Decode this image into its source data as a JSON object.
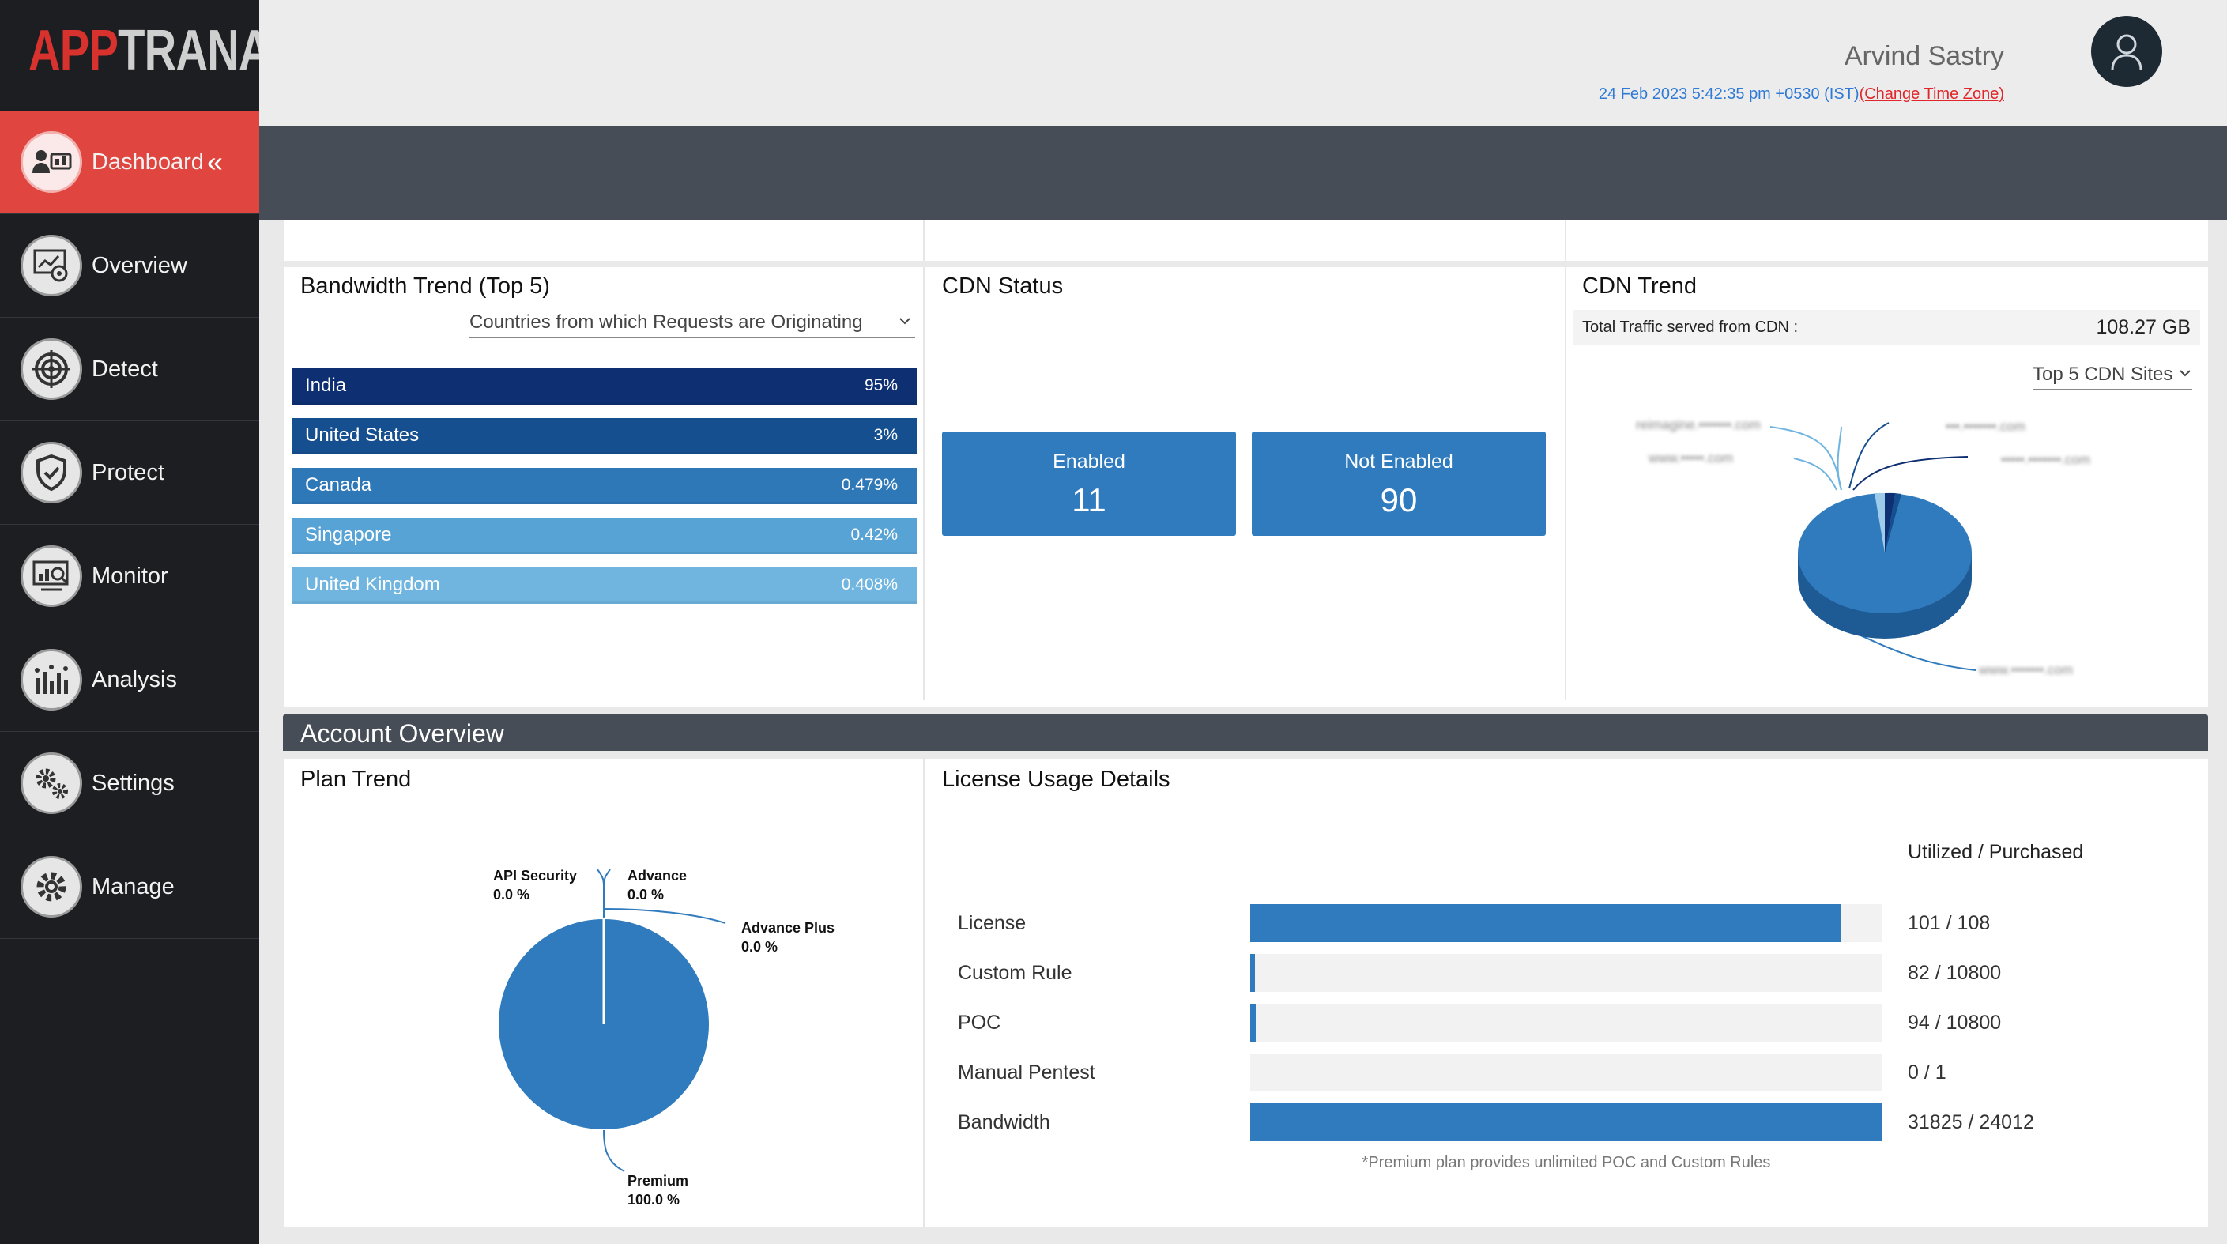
{
  "app": {
    "logo_app": "APP",
    "logo_trana": "TRANA"
  },
  "sidebar": {
    "items": [
      {
        "label": "Dashboard",
        "icon": "dashboard-icon",
        "active": true
      },
      {
        "label": "Overview",
        "icon": "overview-icon"
      },
      {
        "label": "Detect",
        "icon": "target-icon"
      },
      {
        "label": "Protect",
        "icon": "shield-icon"
      },
      {
        "label": "Monitor",
        "icon": "monitor-icon"
      },
      {
        "label": "Analysis",
        "icon": "bar-chart-icon"
      },
      {
        "label": "Settings",
        "icon": "gears-icon"
      },
      {
        "label": "Manage",
        "icon": "gear-icon"
      }
    ],
    "collapse_glyph": "«"
  },
  "header": {
    "user_name": "Arvind Sastry",
    "datetime": "24 Feb 2023 5:42:35 pm +0530 (IST)",
    "change_tz": "(Change Time Zone)"
  },
  "bandwidth": {
    "title": "Bandwidth Trend (Top 5)",
    "dropdown": "Countries from which Requests are Originating",
    "rows": [
      {
        "name": "India",
        "value": "95%",
        "color": "#0e2f72"
      },
      {
        "name": "United States",
        "value": "3%",
        "color": "#164f8f"
      },
      {
        "name": "Canada",
        "value": "0.479%",
        "color": "#2f78b8"
      },
      {
        "name": "Singapore",
        "value": "0.42%",
        "color": "#58a3d6"
      },
      {
        "name": "United Kingdom",
        "value": "0.408%",
        "color": "#6fb5df"
      }
    ]
  },
  "cdn_status": {
    "title": "CDN Status",
    "enabled_label": "Enabled",
    "enabled_value": "11",
    "not_enabled_label": "Not Enabled",
    "not_enabled_value": "90"
  },
  "cdn_trend": {
    "title": "CDN Trend",
    "total_label": "Total Traffic served from CDN :",
    "total_value": "108.27 GB",
    "dropdown": "Top 5 CDN Sites",
    "blurred_sites": [
      "reimagine.•••••••.com",
      "www.•••••.com",
      "•••.•••••••.com",
      "•••••.•••••••.com",
      "www.•••••••.com"
    ]
  },
  "account": {
    "title": "Account Overview",
    "plan_trend": {
      "title": "Plan Trend",
      "labels": [
        {
          "name": "API Security",
          "value": "0.0 %"
        },
        {
          "name": "Advance",
          "value": "0.0 %"
        },
        {
          "name": "Advance Plus",
          "value": "0.0 %"
        },
        {
          "name": "Premium",
          "value": "100.0 %"
        }
      ]
    },
    "license": {
      "title": "License Usage Details",
      "column_header": "Utilized / Purchased",
      "rows": [
        {
          "label": "License",
          "value": "101 / 108",
          "fraction": 0.935
        },
        {
          "label": "Custom Rule",
          "value": "82 / 10800",
          "fraction": 0.0076
        },
        {
          "label": "POC",
          "value": "94 / 10800",
          "fraction": 0.0087
        },
        {
          "label": "Manual Pentest",
          "value": "0 / 1",
          "fraction": 0
        },
        {
          "label": "Bandwidth",
          "value": "31825 / 24012",
          "fraction": 1
        }
      ],
      "footnote": "*Premium plan provides unlimited POC and Custom Rules"
    }
  },
  "colors": {
    "accent_red": "#e0453f",
    "cdn_blue": "#2f7bbd",
    "dark_bar": "#474d57"
  }
}
